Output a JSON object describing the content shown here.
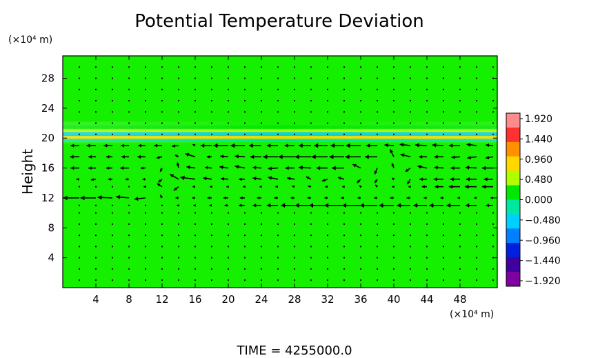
{
  "chart_data": {
    "type": "heatmap",
    "title": "Potential Temperature Deviation",
    "ylabel": "Height",
    "xlabel": "",
    "x_unit": "(×10⁴ m)",
    "y_unit": "(×10⁴ m)",
    "xlim": [
      0,
      52.5
    ],
    "ylim": [
      0,
      31
    ],
    "x_ticks": [
      4,
      8,
      12,
      16,
      20,
      24,
      28,
      32,
      36,
      40,
      44,
      48
    ],
    "x_tick_labels": [
      "4",
      "8",
      "12",
      "16",
      "20",
      "24",
      "28",
      "32",
      "36",
      "40",
      "44",
      "48"
    ],
    "y_ticks": [
      4,
      8,
      12,
      16,
      20,
      24,
      28
    ],
    "y_tick_labels": [
      "4",
      "8",
      "12",
      "16",
      "20",
      "24",
      "28"
    ],
    "background_value": 0.0,
    "bands": [
      {
        "y": 21.5,
        "value": 0.3
      },
      {
        "y": 21.0,
        "value": 0.6
      },
      {
        "y": 20.6,
        "value": -0.5
      },
      {
        "y": 20.1,
        "value": 0.9
      },
      {
        "y": 19.7,
        "value": -0.3
      }
    ],
    "colorbar": {
      "ticks": [
        1.92,
        1.44,
        0.96,
        0.48,
        0.0,
        -0.48,
        -0.96,
        -1.44,
        -1.92
      ],
      "tick_labels": [
        "1.920",
        "1.440",
        "0.960",
        "0.480",
        "0.000",
        "−0.480",
        "−0.960",
        "−1.440",
        "−1.920"
      ],
      "colors_top_to_bottom": [
        "#ff8c8c",
        "#ff3030",
        "#ff9000",
        "#ffd800",
        "#b0ff00",
        "#00e800",
        "#00e8a0",
        "#00d0ff",
        "#0080ff",
        "#0020e0",
        "#4000a0",
        "#8000a0"
      ]
    },
    "vectors": {
      "x": [
        2,
        4,
        6,
        8,
        10,
        12,
        14,
        16,
        18,
        20,
        22,
        24,
        26,
        28,
        30,
        32,
        34,
        36,
        38,
        40,
        42,
        44,
        46,
        48,
        50,
        52
      ],
      "rows": [
        {
          "y": 19,
          "u": [
            -1.4,
            -1.5,
            -1.4,
            -1.3,
            -1.2,
            -1.3,
            -1.1,
            -0.4,
            -1.8,
            -2.4,
            -2.3,
            -2.0,
            -1.8,
            -1.6,
            -2.0,
            -2.2,
            -2.2,
            -2.4,
            -1.8,
            -1.5,
            -1.7,
            -1.9,
            -1.8,
            -1.8,
            -1.6,
            -1.2
          ],
          "v": [
            0,
            0,
            0,
            0,
            0,
            0,
            -0.1,
            0.2,
            0,
            0,
            0,
            0,
            0,
            0,
            0,
            0,
            0,
            0,
            0,
            0.1,
            0.2,
            0.1,
            0.1,
            0,
            0.2,
            0.1
          ]
        },
        {
          "y": 17.5,
          "u": [
            -1.5,
            -1.2,
            -1.0,
            -1.2,
            -1.3,
            -0.9,
            -0.6,
            -1.6,
            -0.8,
            -1.3,
            -1.6,
            -1.8,
            -2.4,
            -2.6,
            -2.6,
            -2.6,
            -2.4,
            -2.5,
            -2.0,
            -0.6,
            -1.6,
            -1.3,
            -1.5,
            -1.4,
            -1.5,
            -1.2
          ],
          "v": [
            0,
            0,
            0,
            0,
            0,
            -0.2,
            0.3,
            0.5,
            0,
            0.1,
            0.1,
            0,
            0,
            0,
            0,
            0,
            0,
            0,
            0,
            1.2,
            0.4,
            0,
            0,
            -0.1,
            -0.2,
            -0.2
          ]
        },
        {
          "y": 16,
          "u": [
            -1.4,
            -1.2,
            -1.0,
            -1.4,
            -0.8,
            -0.3,
            -0.2,
            -1.4,
            -1.1,
            -1.4,
            -1.6,
            -1.4,
            -1.6,
            -1.5,
            -2.0,
            -1.8,
            -2.0,
            -1.3,
            -0.4,
            -0.3,
            -0.8,
            -1.5,
            -1.5,
            -1.5,
            -1.8,
            -1.8
          ],
          "v": [
            0,
            0,
            0,
            0,
            0,
            -0.6,
            0.9,
            0.2,
            0.1,
            0.2,
            0.3,
            0.1,
            -0.1,
            0,
            0.1,
            0,
            0,
            0.6,
            -1.0,
            0.8,
            -0.6,
            0.3,
            0.1,
            0,
            0.1,
            0
          ]
        },
        {
          "y": 14.5,
          "u": [
            -0.5,
            -0.8,
            -0.7,
            -0.6,
            -0.5,
            -0.6,
            -1.4,
            -2.4,
            -1.4,
            -1.2,
            -1.0,
            -1.4,
            -1.6,
            -1.2,
            -0.8,
            -0.9,
            -1.0,
            -0.6,
            -0.4,
            -0.3,
            -0.5,
            -1.2,
            -1.6,
            -1.6,
            -1.7,
            -1.5
          ],
          "v": [
            0,
            -0.1,
            0,
            0,
            0,
            -0.5,
            0.8,
            0.3,
            0.2,
            0.1,
            0,
            0.2,
            0.3,
            0.2,
            0.4,
            -0.3,
            0.3,
            -0.6,
            -0.6,
            0.2,
            -0.8,
            0,
            0,
            0,
            0,
            0
          ]
        },
        {
          "y": 13.5,
          "u": [
            -0.1,
            -0.2,
            -0.2,
            -0.2,
            -0.3,
            -0.8,
            -0.8,
            -0.4,
            -0.3,
            -0.3,
            -0.3,
            -0.3,
            -0.4,
            -0.4,
            -0.5,
            -0.4,
            -0.3,
            -0.2,
            -0.3,
            -0.3,
            -0.3,
            -0.8,
            -1.4,
            -1.8,
            -1.9,
            -1.8
          ],
          "v": [
            0,
            0,
            0,
            0,
            0,
            0.5,
            -0.6,
            0,
            0,
            0,
            0,
            0,
            0,
            0.1,
            0.1,
            0,
            0,
            0.2,
            0.3,
            0,
            0,
            0,
            0,
            0,
            0,
            0
          ]
        },
        {
          "y": 12,
          "u": [
            -2.6,
            -2.5,
            -2.4,
            -2.1,
            -1.8,
            -0.3,
            -0.5,
            -0.5,
            -0.7,
            -0.8,
            -0.8,
            -0.7,
            -0.6,
            -0.6,
            -0.6,
            -0.5,
            -0.5,
            -0.5,
            -0.5,
            -0.6,
            -0.6,
            -0.5,
            -0.5,
            -0.4,
            -0.4,
            -0.4
          ],
          "v": [
            0,
            0,
            0.1,
            0.2,
            -0.2,
            0.5,
            0,
            0,
            0,
            0,
            0,
            0,
            0,
            0,
            0,
            0,
            0,
            0,
            0,
            0,
            0,
            0,
            0,
            0,
            0,
            0
          ]
        },
        {
          "y": 11,
          "u": [
            -0.2,
            -0.2,
            -0.2,
            -0.2,
            -0.2,
            -0.2,
            -0.3,
            -0.3,
            -0.4,
            -0.6,
            -1.0,
            -1.4,
            -1.8,
            -2.2,
            -2.6,
            -3.0,
            -3.2,
            -3.0,
            -2.8,
            -2.4,
            -2.2,
            -2.2,
            -2.3,
            -2.2,
            -1.8,
            -1.2
          ],
          "v": [
            0,
            0,
            0,
            0,
            0,
            0,
            0,
            0,
            0,
            0,
            0,
            0,
            0,
            0,
            0,
            0,
            0,
            0,
            0,
            0,
            0,
            0,
            0,
            0,
            0,
            0
          ]
        }
      ]
    }
  },
  "footer": {
    "time_label": "TIME  =  4255000.0"
  }
}
